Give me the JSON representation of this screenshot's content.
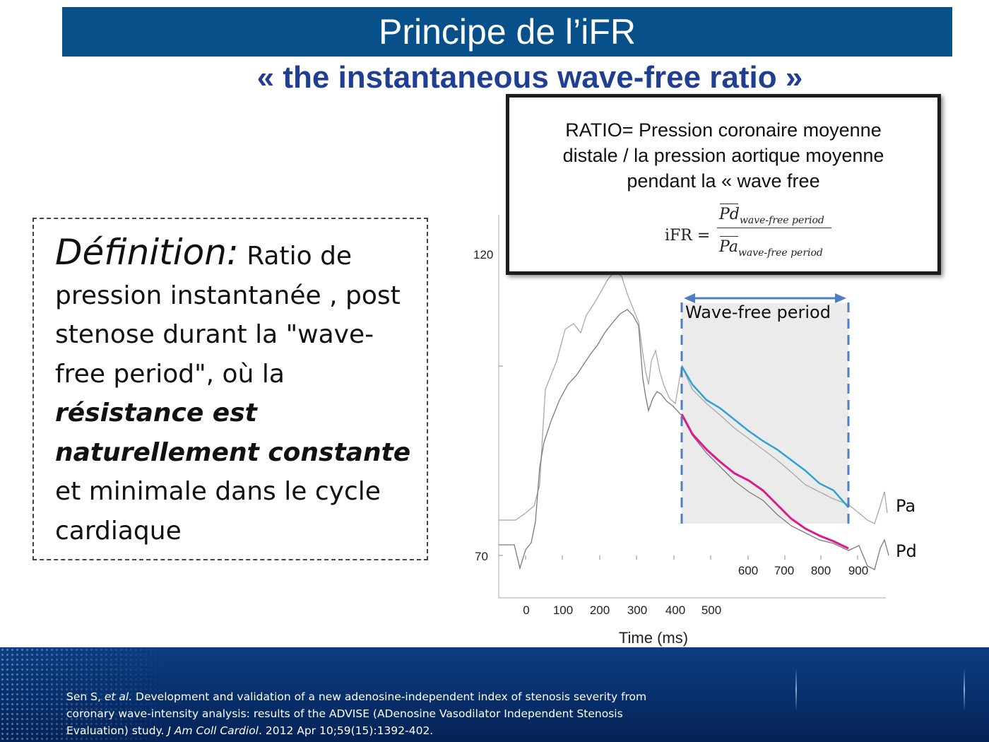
{
  "title": "Principe  de l’iFR",
  "subtitle": "« the instantaneous wave-free ratio »",
  "definition": {
    "lead": "Définition:",
    "part1": " Ratio de pression instantanée , post stenose durant la \"wave-free period\", où la ",
    "emphasis": "résistance est naturellement constante",
    "part2": " et  minimale dans le cycle cardiaque"
  },
  "ratio_box": {
    "lines": [
      "RATIO= Pression coronaire moyenne",
      "distale / la pression aortique moyenne",
      "pendant la « wave free"
    ],
    "formula": {
      "lhs": "iFR =",
      "num": "Pd",
      "den": "Pa",
      "sub": "wave-free period"
    }
  },
  "chart": {
    "y_labels": [
      "120",
      "70"
    ],
    "x_labels_low": [
      "0",
      "100",
      "200",
      "300",
      "400",
      "500"
    ],
    "x_labels_high": [
      "600",
      "700",
      "800",
      "900"
    ],
    "x_title": "Time (ms)",
    "window_label": "Wave-free period",
    "pa_label": "Pa",
    "pd_label": "Pd",
    "colors": {
      "pa": "#2ea3d3",
      "pd": "#dd1a8c",
      "trace": "#8a8a8a",
      "window": "#4f7fc0",
      "shade": "#ebebeb"
    }
  },
  "citation": {
    "authors": "Sen S, ",
    "etal": "et al.",
    "text1": " Development and validation of a new adenosine-independent index of stenosis severity from coronary wave-intensity analysis: results of the ADVISE (ADenosine Vasodilator Independent Stenosis Evaluation) study. ",
    "journal": "J Am Coll Cardiol",
    "text2": ". 2012 Apr 10;59(15):1392-402."
  }
}
